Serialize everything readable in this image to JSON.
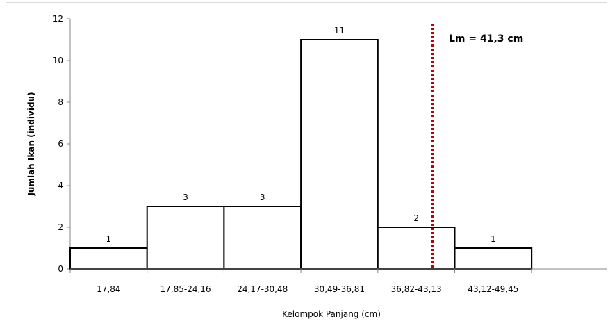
{
  "chart_data": {
    "type": "bar",
    "title": "",
    "xlabel": "Kelompok Panjang (cm)",
    "ylabel": "Jumlah Ikan (individu)",
    "ylim": [
      0,
      12
    ],
    "yticks": [
      "0",
      "2",
      "4",
      "6",
      "8",
      "10",
      "12"
    ],
    "categories": [
      "17,84",
      "17,85-24,16",
      "24,17-30,48",
      "30,49-36,81",
      "36,82-43,13",
      "43,12-49,45"
    ],
    "values": [
      1,
      3,
      3,
      11,
      2,
      1
    ],
    "data_labels": [
      "1",
      "3",
      "3",
      "11",
      "2",
      "1"
    ],
    "bar_color": "#ffffff",
    "bar_edge_color": "#000000",
    "grid": false,
    "legend": "none",
    "reference_line": {
      "label": "Lm = 41,3 cm",
      "value": 41.3,
      "style": "dotted",
      "color": "#c00000"
    }
  }
}
